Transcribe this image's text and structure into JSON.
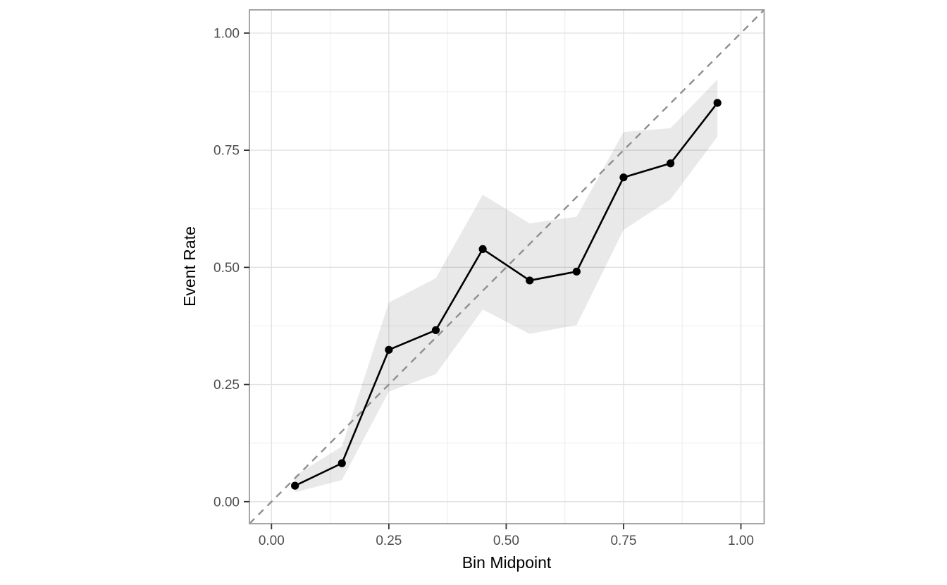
{
  "chart_data": {
    "type": "line",
    "title": "",
    "xlabel": "Bin Midpoint",
    "ylabel": "Event Rate",
    "x": [
      0.05,
      0.15,
      0.25,
      0.35,
      0.45,
      0.55,
      0.65,
      0.75,
      0.85,
      0.95
    ],
    "series": [
      {
        "name": "observed-event-rate",
        "values": [
          0.034,
          0.082,
          0.324,
          0.366,
          0.539,
          0.472,
          0.491,
          0.692,
          0.722,
          0.851
        ]
      }
    ],
    "ribbon": {
      "name": "confidence-band",
      "lower": [
        0.02,
        0.046,
        0.235,
        0.272,
        0.41,
        0.358,
        0.377,
        0.58,
        0.645,
        0.779
      ],
      "upper": [
        0.055,
        0.118,
        0.425,
        0.477,
        0.655,
        0.594,
        0.608,
        0.789,
        0.797,
        0.901
      ]
    },
    "reference_line": {
      "kind": "identity-diagonal",
      "from": [
        0,
        0
      ],
      "to": [
        1,
        1
      ],
      "style": "dashed"
    },
    "xlim": [
      -0.047,
      1.0495
    ],
    "ylim": [
      -0.047,
      1.0495
    ],
    "x_ticks": [
      0,
      0.25,
      0.5,
      0.75,
      1.0
    ],
    "y_ticks": [
      0,
      0.25,
      0.5,
      0.75,
      1.0
    ],
    "x_tick_labels": [
      "0.00",
      "0.25",
      "0.50",
      "0.75",
      "1.00"
    ],
    "y_tick_labels": [
      "0.00",
      "0.25",
      "0.50",
      "0.75",
      "1.00"
    ],
    "x_minor_ticks": [
      0.125,
      0.375,
      0.625,
      0.875
    ],
    "y_minor_ticks": [
      0.125,
      0.375,
      0.625,
      0.875
    ],
    "grid": true,
    "legend": "none"
  },
  "colors": {
    "background": "#ffffff",
    "panel_background": "#ffffff",
    "panel_border": "#9b9b9b",
    "grid_major": "#e2e2e2",
    "grid_minor": "#efefef",
    "ribbon_fill": "rgba(0,0,0,0.085)",
    "reference_line": "#8f8f8f",
    "series_line": "#000000",
    "point_fill": "#000000",
    "tick_mark": "#333333",
    "tick_label": "#4d4d4d",
    "axis_title": "#000000"
  }
}
